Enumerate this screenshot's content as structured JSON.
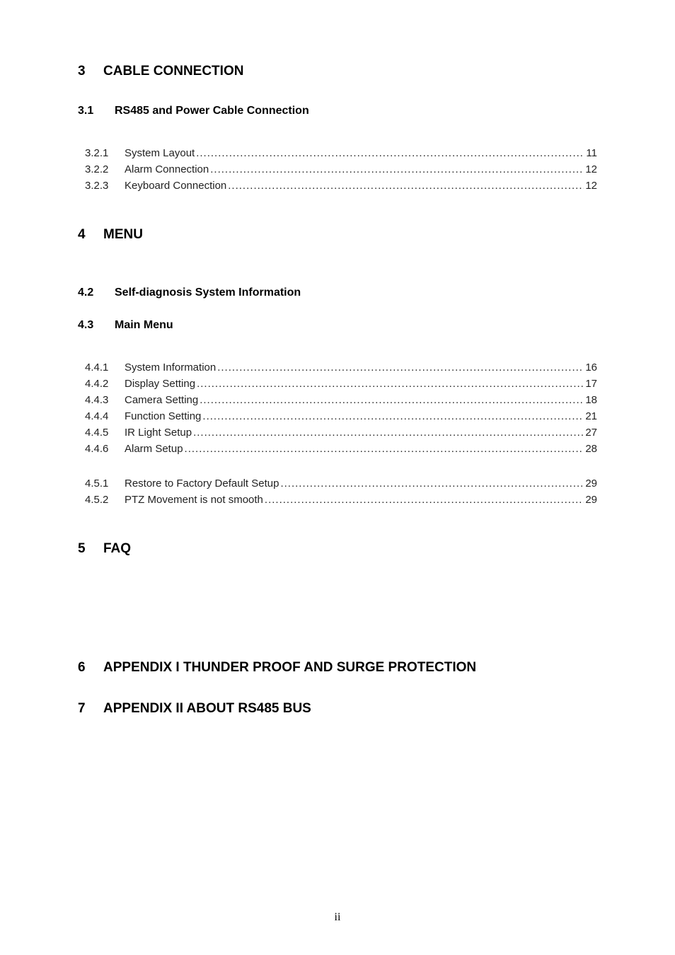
{
  "colors": {
    "background": "#ffffff",
    "text": "#000000",
    "tocText": "#222222"
  },
  "typography": {
    "bodyFontFamily": "Arial, Helvetica, sans-serif",
    "footerFontFamily": "Times New Roman, Times, serif",
    "h1FontSize": 19,
    "h2FontSize": 16,
    "tocFontSize": 15,
    "footerFontSize": 16
  },
  "sections": {
    "s3": {
      "num": "3",
      "title": "CABLE CONNECTION",
      "sub1": {
        "num": "3.1",
        "title": "RS485 and Power Cable Connection"
      },
      "toc": [
        {
          "num": "3.2.1",
          "title": "System Layout",
          "page": "11"
        },
        {
          "num": "3.2.2",
          "title": "Alarm Connection",
          "page": "12"
        },
        {
          "num": "3.2.3",
          "title": "Keyboard Connection",
          "page": "12"
        }
      ]
    },
    "s4": {
      "num": "4",
      "title": "MENU",
      "sub2": {
        "num": "4.2",
        "title": "Self-diagnosis System Information"
      },
      "sub3": {
        "num": "4.3",
        "title": "Main Menu"
      },
      "toc44": [
        {
          "num": "4.4.1",
          "title": "System Information",
          "page": "16"
        },
        {
          "num": "4.4.2",
          "title": "Display Setting",
          "page": "17"
        },
        {
          "num": "4.4.3",
          "title": "Camera Setting",
          "page": "18"
        },
        {
          "num": "4.4.4",
          "title": "Function Setting",
          "page": "21"
        },
        {
          "num": "4.4.5",
          "title": "IR Light Setup",
          "page": "27"
        },
        {
          "num": "4.4.6",
          "title": "Alarm Setup",
          "page": "28"
        }
      ],
      "toc45": [
        {
          "num": "4.5.1",
          "title": "Restore to Factory Default Setup",
          "page": "29"
        },
        {
          "num": "4.5.2",
          "title": "PTZ Movement is not smooth",
          "page": "29"
        }
      ]
    },
    "s5": {
      "num": "5",
      "title": "FAQ"
    },
    "s6": {
      "num": "6",
      "title": "APPENDIX I THUNDER PROOF AND SURGE PROTECTION"
    },
    "s7": {
      "num": "7",
      "title": "APPENDIX  II ABOUT RS485 BUS"
    }
  },
  "footer": {
    "pageLabel": "ii"
  }
}
